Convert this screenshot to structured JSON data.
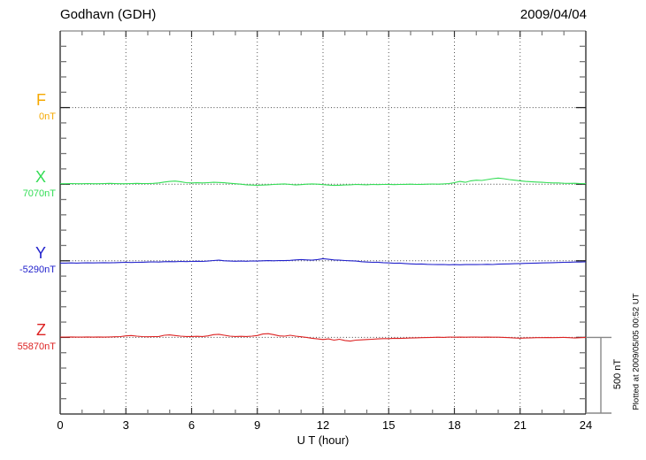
{
  "header": {
    "station_title": "Godhavn (GDH)",
    "date": "2009/04/04"
  },
  "footnote": "Plotted at 2009/05/05 00:52 UT",
  "chart_data": {
    "type": "line",
    "title": "Godhavn (GDH)",
    "date": "2009/04/04",
    "xlabel": "U T (hour)",
    "x_range": [
      0,
      24
    ],
    "x_tick_labels": [
      "0",
      "3",
      "6",
      "9",
      "12",
      "15",
      "18",
      "21",
      "24"
    ],
    "x_step_hours": 0.25,
    "grid": "dotted vertical lines every 3 hours; dotted horizontal line at each channel baseline",
    "legend_position": "left margin channel labels",
    "scale_bar": {
      "label": "500 nT",
      "nT_per_division": 500
    },
    "colors": {
      "F": "#f5a800",
      "X": "#33dd55",
      "Y": "#2222cc",
      "Z": "#dd2222",
      "axis": "#333333",
      "grid": "#555555",
      "scalebar": "#888888"
    },
    "series": [
      {
        "name": "F",
        "baseline_label": "0nT",
        "baseline_nT": 0,
        "color": "#f5a800",
        "values": []
      },
      {
        "name": "X",
        "baseline_label": "7070nT",
        "baseline_nT": 7070,
        "color": "#33dd55",
        "values": [
          3,
          3,
          4,
          3,
          3,
          4,
          3,
          3,
          4,
          5,
          4,
          3,
          3,
          4,
          5,
          4,
          4,
          5,
          8,
          14,
          18,
          20,
          16,
          10,
          8,
          9,
          8,
          10,
          12,
          11,
          9,
          6,
          3,
          0,
          -4,
          -6,
          -7,
          -6,
          -4,
          -2,
          0,
          2,
          -2,
          -5,
          -3,
          0,
          2,
          0,
          -3,
          -6,
          -8,
          -7,
          -5,
          -4,
          -2,
          -3,
          -4,
          -2,
          -3,
          -2,
          -1,
          -3,
          -2,
          -1,
          0,
          -2,
          -1,
          0,
          1,
          0,
          2,
          4,
          10,
          18,
          12,
          22,
          26,
          24,
          30,
          36,
          40,
          36,
          30,
          26,
          22,
          18,
          16,
          14,
          12,
          10,
          8,
          8,
          6,
          5,
          6,
          4,
          3
        ]
      },
      {
        "name": "Y",
        "baseline_label": "-5290nT",
        "baseline_nT": -5290,
        "color": "#2222cc",
        "values": [
          -15,
          -15,
          -14,
          -15,
          -14,
          -13,
          -14,
          -13,
          -12,
          -13,
          -12,
          -11,
          -10,
          -11,
          -10,
          -9,
          -8,
          -7,
          -8,
          -6,
          -5,
          -6,
          -4,
          -5,
          -4,
          -3,
          -4,
          -2,
          2,
          4,
          0,
          -2,
          -3,
          -2,
          -3,
          -1,
          -2,
          0,
          1,
          0,
          2,
          1,
          3,
          6,
          8,
          6,
          4,
          8,
          14,
          10,
          6,
          4,
          2,
          0,
          -2,
          -6,
          -8,
          -10,
          -9,
          -12,
          -14,
          -16,
          -15,
          -18,
          -20,
          -22,
          -21,
          -23,
          -24,
          -25,
          -24,
          -26,
          -25,
          -26,
          -25,
          -24,
          -25,
          -24,
          -23,
          -24,
          -22,
          -21,
          -20,
          -19,
          -18,
          -17,
          -16,
          -15,
          -14,
          -13,
          -12,
          -11,
          -10,
          -9,
          -8,
          -8,
          -7
        ]
      },
      {
        "name": "Z",
        "baseline_label": "55870nT",
        "baseline_nT": 55870,
        "color": "#dd2222",
        "values": [
          2,
          2,
          3,
          2,
          2,
          3,
          2,
          3,
          2,
          3,
          4,
          5,
          10,
          12,
          8,
          5,
          4,
          5,
          6,
          14,
          16,
          12,
          8,
          6,
          6,
          7,
          6,
          10,
          18,
          20,
          14,
          8,
          6,
          7,
          6,
          8,
          12,
          22,
          24,
          18,
          10,
          8,
          14,
          8,
          4,
          0,
          -6,
          -10,
          -14,
          -10,
          -18,
          -12,
          -20,
          -24,
          -18,
          -16,
          -14,
          -12,
          -10,
          -8,
          -8,
          -6,
          -7,
          -5,
          -4,
          -3,
          -2,
          -1,
          0,
          1,
          0,
          2,
          1,
          2,
          1,
          2,
          2,
          1,
          2,
          1,
          1,
          0,
          -2,
          -4,
          -5,
          -4,
          -3,
          -2,
          -2,
          -1,
          -2,
          -1,
          0,
          -2,
          -4,
          -2,
          0
        ]
      }
    ]
  }
}
